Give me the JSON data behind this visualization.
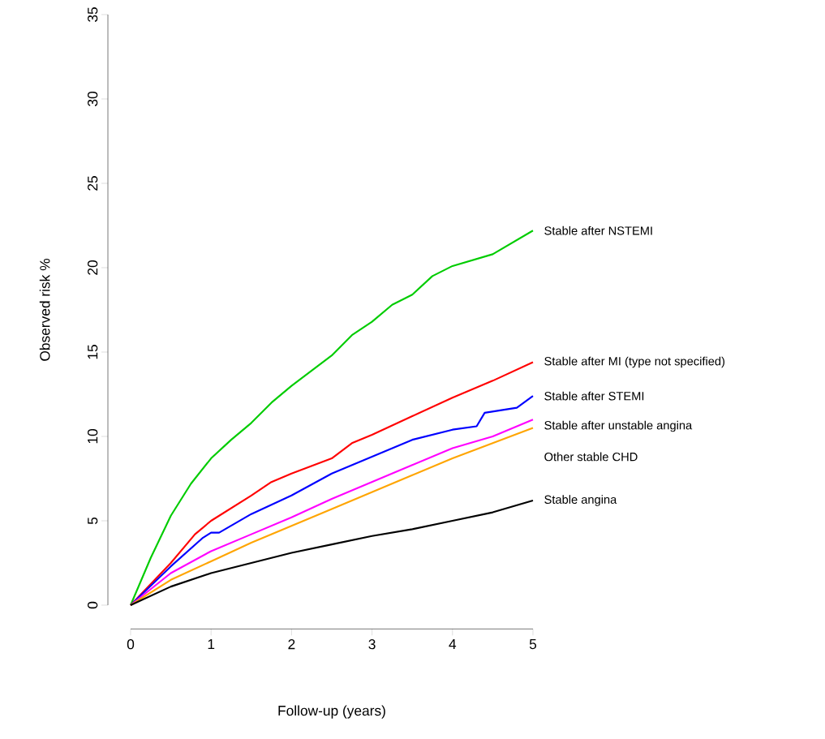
{
  "chart_data": {
    "type": "line",
    "xlabel": "Follow-up (years)",
    "ylabel": "Observed risk %",
    "xlim": [
      0,
      5
    ],
    "ylim": [
      0,
      35
    ],
    "xticks": [
      0,
      1,
      2,
      3,
      4,
      5
    ],
    "yticks": [
      0,
      5,
      10,
      15,
      20,
      25,
      30,
      35
    ],
    "grid": false,
    "legend": false,
    "series": [
      {
        "name": "Stable after NSTEMI",
        "color": "#00cc00",
        "x": [
          0,
          0.25,
          0.5,
          0.75,
          1,
          1.25,
          1.5,
          1.75,
          2,
          2.5,
          2.75,
          3,
          3.25,
          3.5,
          3.75,
          4,
          4.5,
          5
        ],
        "values": [
          0,
          2.8,
          5.3,
          7.2,
          8.7,
          9.8,
          10.8,
          12,
          13,
          14.8,
          16,
          16.8,
          17.8,
          18.4,
          19.5,
          20.1,
          20.8,
          22.2
        ]
      },
      {
        "name": "Stable after MI (type not specified)",
        "color": "#ff0000",
        "x": [
          0,
          0.5,
          0.8,
          1,
          1.5,
          1.75,
          2,
          2.5,
          2.75,
          3,
          3.5,
          4,
          4.5,
          5
        ],
        "values": [
          0,
          2.5,
          4.2,
          5,
          6.5,
          7.3,
          7.8,
          8.7,
          9.6,
          10.1,
          11.2,
          12.3,
          13.3,
          14.4
        ]
      },
      {
        "name": "Stable after STEMI",
        "color": "#0000ff",
        "x": [
          0,
          0.5,
          0.9,
          1,
          1.1,
          1.5,
          2,
          2.5,
          3,
          3.5,
          4,
          4.3,
          4.4,
          4.8,
          5
        ],
        "values": [
          0,
          2.3,
          4,
          4.3,
          4.3,
          5.4,
          6.5,
          7.8,
          8.8,
          9.8,
          10.4,
          10.6,
          11.4,
          11.7,
          12.4
        ]
      },
      {
        "name": "Stable after unstable angina",
        "color": "#ff00ff",
        "x": [
          0,
          0.5,
          1,
          1.5,
          2,
          2.5,
          3,
          3.5,
          4,
          4.5,
          5
        ],
        "values": [
          0,
          1.9,
          3.2,
          4.2,
          5.2,
          6.3,
          7.3,
          8.3,
          9.3,
          10,
          11
        ]
      },
      {
        "name": "Other stable CHD",
        "color": "#ffa500",
        "x": [
          0,
          0.5,
          1,
          1.5,
          2,
          2.5,
          3,
          3.5,
          4,
          4.5,
          5
        ],
        "values": [
          0,
          1.5,
          2.6,
          3.7,
          4.7,
          5.7,
          6.7,
          7.7,
          8.7,
          9.6,
          10.5
        ]
      },
      {
        "name": "Stable angina",
        "color": "#000000",
        "x": [
          0,
          0.5,
          1,
          1.5,
          2,
          2.5,
          3,
          3.5,
          4,
          4.5,
          5
        ],
        "values": [
          0,
          1.1,
          1.9,
          2.5,
          3.1,
          3.6,
          4.1,
          4.5,
          5,
          5.5,
          6.2
        ]
      }
    ]
  }
}
